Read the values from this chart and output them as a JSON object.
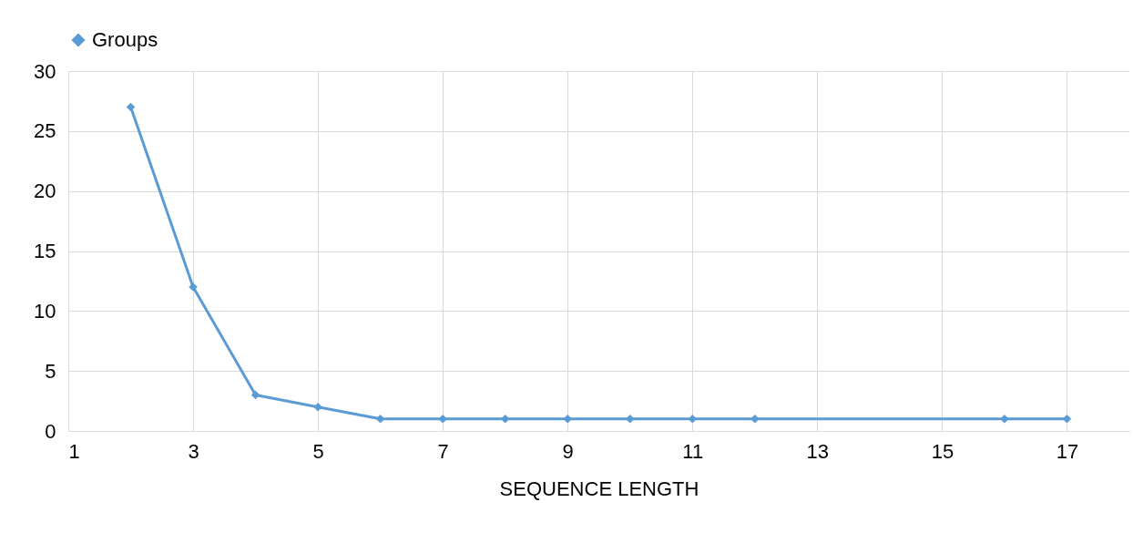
{
  "chart_data": {
    "type": "line",
    "xlabel": "SEQUENCE LENGTH",
    "x": [
      2,
      3,
      4,
      5,
      6,
      7,
      8,
      9,
      10,
      11,
      12,
      16,
      17
    ],
    "series": [
      {
        "name": "Groups",
        "color": "#5b9bd5",
        "values": [
          27,
          12,
          3,
          2,
          1,
          1,
          1,
          1,
          1,
          1,
          1,
          1,
          1
        ]
      }
    ],
    "xlim": [
      1,
      18
    ],
    "xticks": [
      1,
      3,
      5,
      7,
      9,
      11,
      13,
      15,
      17
    ],
    "ylim": [
      0,
      30
    ],
    "yticks": [
      0,
      5,
      10,
      15,
      20,
      25,
      30
    ],
    "grid": true,
    "legend": "top",
    "marker": "diamond",
    "line_style": "solid"
  }
}
